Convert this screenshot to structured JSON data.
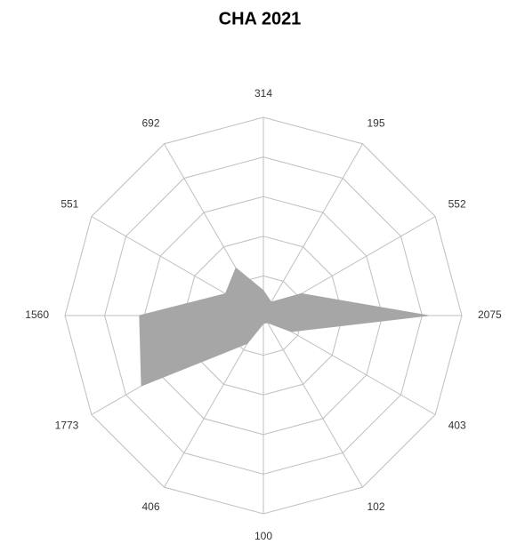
{
  "chart_data": {
    "type": "radar",
    "title": "CHA 2021",
    "categories": [
      "314",
      "195",
      "552",
      "2075",
      "403",
      "102",
      "100",
      "406",
      "1773",
      "1560",
      "551",
      "692"
    ],
    "values": [
      314,
      195,
      552,
      2075,
      403,
      102,
      100,
      406,
      1773,
      1560,
      551,
      692
    ],
    "color": "#a6a6a6",
    "ylim": [
      0,
      2500
    ],
    "yticks": [
      0,
      500,
      1000,
      1500,
      2000,
      2500
    ],
    "grid": true
  }
}
